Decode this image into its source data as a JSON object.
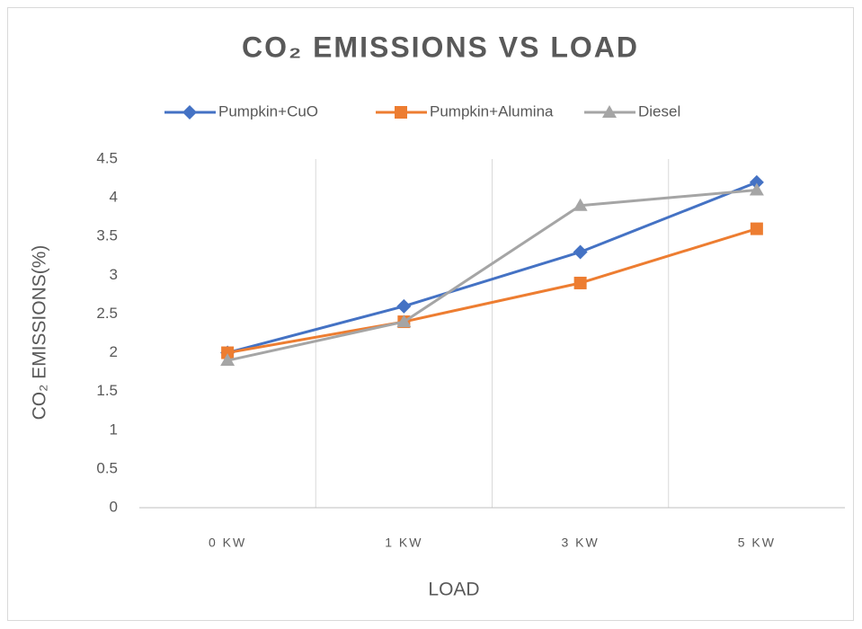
{
  "chart_data": {
    "type": "line",
    "title": "CO₂ EMISSIONS VS LOAD",
    "x_label": "LOAD",
    "y_label": "CO₂ EMISSIONS(%)",
    "categories": [
      "0 KW",
      "1 KW",
      "3 KW",
      "5 KW"
    ],
    "series": [
      {
        "name": "Pumpkin+CuO",
        "color": "#4472c4",
        "marker": "diamond",
        "values": [
          2,
          2.6,
          3.3,
          4.2
        ]
      },
      {
        "name": "Pumpkin+Alumina",
        "color": "#ed7d31",
        "marker": "square",
        "values": [
          2,
          2.4,
          2.9,
          3.6
        ]
      },
      {
        "name": "Diesel",
        "color": "#a5a5a5",
        "marker": "triangle",
        "values": [
          1.9,
          2.4,
          3.9,
          4.1
        ]
      }
    ],
    "ylim": [
      0,
      4.5
    ],
    "yticks": [
      0,
      0.5,
      1,
      1.5,
      2,
      2.5,
      3,
      3.5,
      4,
      4.5
    ],
    "xgrid": true,
    "legend": "top"
  }
}
